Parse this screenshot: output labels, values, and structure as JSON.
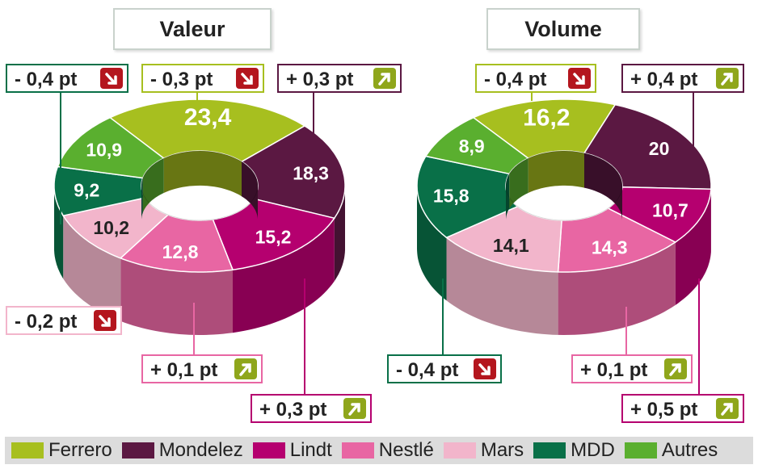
{
  "colors": {
    "Ferrero": "#a7bf1f",
    "Mondelez": "#5b1842",
    "Lindt": "#b5006f",
    "Nestlé": "#e866a3",
    "Mars": "#f2b5cb",
    "MDD": "#097048",
    "Autres": "#5aaf2f",
    "up_badge": "#8fa61b",
    "down_badge": "#b4161e"
  },
  "legend": [
    "Ferrero",
    "Mondelez",
    "Lindt",
    "Nestlé",
    "Mars",
    "MDD",
    "Autres"
  ],
  "chart_data": [
    {
      "type": "pie",
      "title": "Valeur",
      "categories": [
        "Ferrero",
        "Mondelez",
        "Lindt",
        "Nestlé",
        "Mars",
        "MDD",
        "Autres"
      ],
      "values": [
        23.4,
        18.3,
        15.2,
        12.8,
        10.2,
        9.2,
        10.9
      ],
      "labels": [
        "23,4",
        "18,3",
        "15,2",
        "12,8",
        "10,2",
        "9,2",
        "10,9"
      ],
      "changes": [
        {
          "brand": "MDD",
          "text": "- 0,4 pt",
          "direction": "down"
        },
        {
          "brand": "Ferrero",
          "text": "- 0,3 pt",
          "direction": "down"
        },
        {
          "brand": "Mondelez",
          "text": "+ 0,3 pt",
          "direction": "up"
        },
        {
          "brand": "Mars",
          "text": "- 0,2 pt",
          "direction": "down"
        },
        {
          "brand": "Nestlé",
          "text": "+ 0,1 pt",
          "direction": "up"
        },
        {
          "brand": "Lindt",
          "text": "+ 0,3 pt",
          "direction": "up"
        }
      ]
    },
    {
      "type": "pie",
      "title": "Volume",
      "categories": [
        "Ferrero",
        "Mondelez",
        "Lindt",
        "Nestlé",
        "Mars",
        "MDD",
        "Autres"
      ],
      "values": [
        16.2,
        20,
        10.7,
        14.3,
        14.1,
        15.8,
        8.9
      ],
      "labels": [
        "16,2",
        "20",
        "10,7",
        "14,3",
        "14,1",
        "15,8",
        "8,9"
      ],
      "changes": [
        {
          "brand": "Ferrero",
          "text": "- 0,4 pt",
          "direction": "down"
        },
        {
          "brand": "Mondelez",
          "text": "+ 0,4 pt",
          "direction": "up"
        },
        {
          "brand": "MDD",
          "text": "- 0,4 pt",
          "direction": "down"
        },
        {
          "brand": "Nestlé",
          "text": "+ 0,1 pt",
          "direction": "up"
        },
        {
          "brand": "Lindt",
          "text": "+ 0,5 pt",
          "direction": "up"
        }
      ]
    }
  ]
}
